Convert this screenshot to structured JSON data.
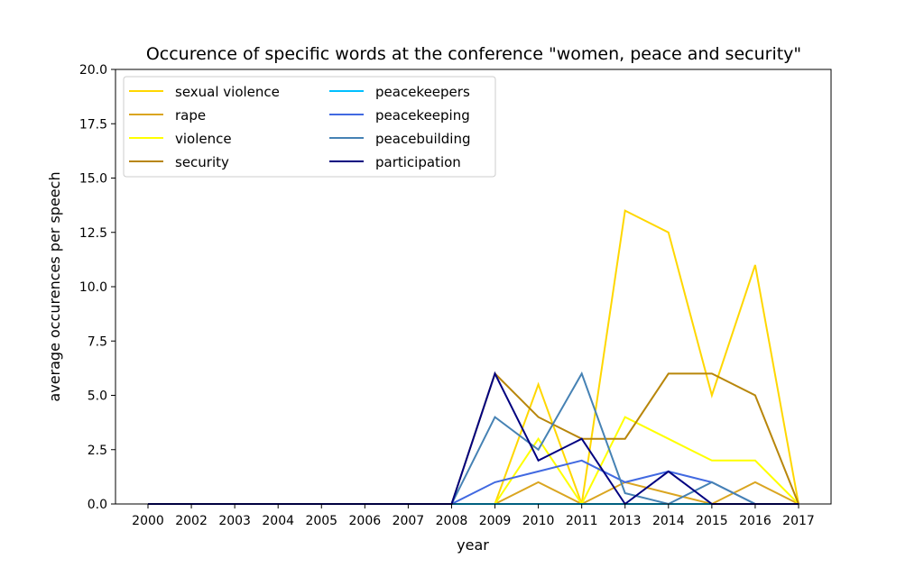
{
  "chart_data": {
    "type": "line",
    "title": "Occurence of specific words at the conference \"women, peace and security\"",
    "xlabel": "year",
    "ylabel": "average occurences per speech",
    "categories": [
      "2000",
      "2002",
      "2003",
      "2004",
      "2005",
      "2006",
      "2007",
      "2008",
      "2009",
      "2010",
      "2011",
      "2013",
      "2014",
      "2015",
      "2016",
      "2017"
    ],
    "ylim": [
      0,
      20
    ],
    "yticks": [
      "0.0",
      "2.5",
      "5.0",
      "7.5",
      "10.0",
      "12.5",
      "15.0",
      "17.5",
      "20.0"
    ],
    "grid": false,
    "legend_placement": "upper-left",
    "series": [
      {
        "name": "sexual violence",
        "color": "#FFD700",
        "values": [
          0,
          0,
          0,
          0,
          0,
          0,
          0,
          0,
          0,
          5.5,
          0,
          13.5,
          12.5,
          5,
          11,
          0
        ]
      },
      {
        "name": "rape",
        "color": "#DAA520",
        "values": [
          0,
          0,
          0,
          0,
          0,
          0,
          0,
          0,
          0,
          1,
          0,
          1,
          0.5,
          0,
          1,
          0
        ]
      },
      {
        "name": "violence",
        "color": "#FFFF00",
        "values": [
          0,
          0,
          0,
          0,
          0,
          0,
          0,
          0,
          0,
          3,
          0,
          4,
          3,
          2,
          2,
          0
        ]
      },
      {
        "name": "security",
        "color": "#B8860B",
        "values": [
          0,
          0,
          0,
          0,
          0,
          0,
          0,
          0,
          6,
          4,
          3,
          3,
          6,
          6,
          5,
          0
        ]
      },
      {
        "name": "peacekeepers",
        "color": "#00BFFF",
        "values": [
          0,
          0,
          0,
          0,
          0,
          0,
          0,
          0,
          0,
          0,
          0,
          0,
          0,
          0,
          0,
          0
        ]
      },
      {
        "name": "peacekeeping",
        "color": "#4169E1",
        "values": [
          0,
          0,
          0,
          0,
          0,
          0,
          0,
          0,
          1,
          1.5,
          2,
          1,
          1.5,
          1,
          0,
          0
        ]
      },
      {
        "name": "peacebuilding",
        "color": "#4682B4",
        "values": [
          0,
          0,
          0,
          0,
          0,
          0,
          0,
          0,
          4,
          2.5,
          6,
          0.5,
          0,
          1,
          0,
          0
        ]
      },
      {
        "name": "participation",
        "color": "#000080",
        "values": [
          0,
          0,
          0,
          0,
          0,
          0,
          0,
          0,
          6,
          2,
          3,
          0,
          1.5,
          0,
          0,
          0
        ]
      }
    ]
  }
}
